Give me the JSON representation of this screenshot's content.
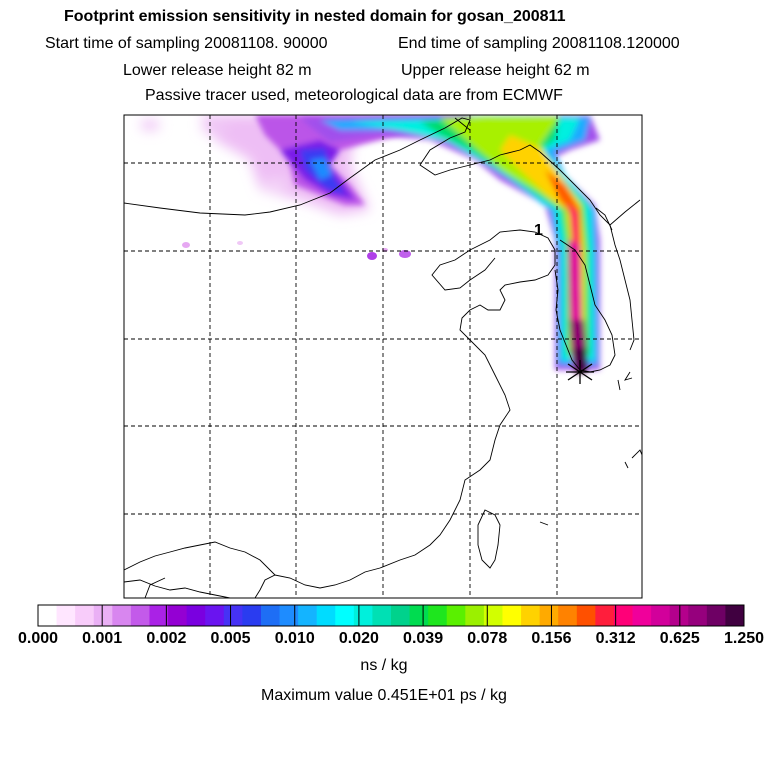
{
  "header": {
    "title": "Footprint emission sensitivity in nested domain for gosan_200811",
    "start_sampling": "Start time of sampling 20081108. 90000",
    "end_sampling": "End time of sampling 20081108.120000",
    "lower_release": "Lower release height   82 m",
    "upper_release": "Upper release height   62 m",
    "tracer_note": "Passive tracer used, meteorological data are from ECMWF"
  },
  "map": {
    "release_marker_label": "1"
  },
  "colorbar": {
    "tick_labels": [
      "0.000",
      "0.001",
      "0.002",
      "0.005",
      "0.010",
      "0.020",
      "0.039",
      "0.078",
      "0.156",
      "0.312",
      "0.625",
      "1.250"
    ],
    "unit": "ns / kg",
    "colors": [
      "#ffffff",
      "#ffe6ff",
      "#f8ccfa",
      "#eab0f5",
      "#d886ef",
      "#c35aea",
      "#aa22e6",
      "#9400d3",
      "#7a00e0",
      "#6a14f0",
      "#4632f5",
      "#2a3cf0",
      "#1e6ef5",
      "#1e8cff",
      "#14b4ff",
      "#00dcff",
      "#00ffff",
      "#00f0dc",
      "#00e0b4",
      "#00d28c",
      "#00dc50",
      "#1ee61e",
      "#5af000",
      "#9bf000",
      "#d2ff00",
      "#ffff00",
      "#ffd200",
      "#ffaa00",
      "#ff8200",
      "#ff5000",
      "#ff1e3c",
      "#ff0078",
      "#f0009b",
      "#d2009b",
      "#b4008c",
      "#96007d",
      "#6e0064",
      "#400040"
    ]
  },
  "footer": {
    "maximum_value": "Maximum value  0.451E+01 ps / kg"
  }
}
